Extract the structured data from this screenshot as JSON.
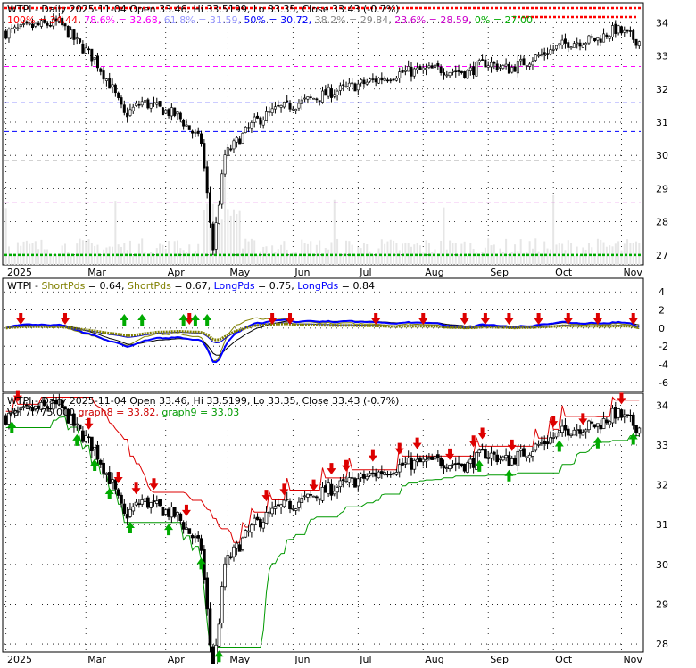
{
  "chart_data": [
    {
      "type": "candlestick",
      "title": "WTPI - Daily 2025-11-04 Open 33.46, Hi 33.5199, Lo 33.35, Close 33.43 (-0.7%)",
      "fib_levels": [
        {
          "label": "100%",
          "value": 34.44,
          "color": "#ff0000"
        },
        {
          "label": "78.6%",
          "value": 32.68,
          "color": "#ff00ff"
        },
        {
          "label": "61.8%",
          "value": 31.59,
          "color": "#9999ff"
        },
        {
          "label": "50%",
          "value": 30.72,
          "color": "#0000ff"
        },
        {
          "label": "38.2%",
          "value": 29.84,
          "color": "#888888"
        },
        {
          "label": "23.6%",
          "value": 28.59,
          "color": "#cc00cc"
        },
        {
          "label": "0%",
          "value": 27.0,
          "color": "#00aa00"
        }
      ],
      "fib_text": [
        "100% = 34.44,",
        "78.6% = 32.68,",
        "61.8% = 31.59,",
        "50% = 30.72,",
        "38.2% = 29.84,",
        "23.6% = 28.59,",
        "0% = 27.00"
      ],
      "y_ticks": [
        34,
        33,
        32,
        31,
        30,
        29,
        28,
        27
      ],
      "ylim": [
        26.7,
        34.6
      ]
    },
    {
      "type": "line",
      "title": "WTPI - ShortPds = 0.64, ShortPds = 0.67, LongPds = 0.75, LongPds = 0.84",
      "title_parts": [
        {
          "text": "WTPI - ",
          "color": "#000000"
        },
        {
          "text": "ShortPds",
          "color": "#808000"
        },
        {
          "text": " = 0.64, ",
          "color": "#000000"
        },
        {
          "text": "ShortPds",
          "color": "#808000"
        },
        {
          "text": " = 0.67, ",
          "color": "#000000"
        },
        {
          "text": "LongPds",
          "color": "#0000ff"
        },
        {
          "text": " = 0.75, ",
          "color": "#000000"
        },
        {
          "text": "LongPds",
          "color": "#0000ff"
        },
        {
          "text": " = 0.84",
          "color": "#000000"
        }
      ],
      "y_ticks": [
        4,
        2,
        0,
        -2,
        -4,
        -6
      ],
      "ylim": [
        -7,
        5.5
      ]
    },
    {
      "type": "candlestick",
      "title": "WTPI - Daily 2025-11-04 Open 33.46, Hi 33.5199, Lo 33.35, Close 33.43 (-0.7%)",
      "legend": [
        {
          "text": "Vol 7,775,000",
          "color": "#000000"
        },
        {
          "text": "graph8 = 33.82,",
          "color": "#cc0000"
        },
        {
          "text": "graph9 = 33.03",
          "color": "#009900"
        }
      ],
      "y_ticks": [
        34,
        33,
        32,
        31,
        30,
        29,
        28
      ],
      "ylim": [
        27.8,
        34.3
      ]
    }
  ],
  "x_labels": [
    "2025",
    "Mar",
    "Apr",
    "May",
    "Jun",
    "Jul",
    "Aug",
    "Sep",
    "Oct",
    "Nov"
  ],
  "colors": {
    "up": "#000000",
    "down": "#000000",
    "buy_arrow": "#00aa00",
    "sell_arrow": "#dd0000",
    "grid": "#000000"
  }
}
